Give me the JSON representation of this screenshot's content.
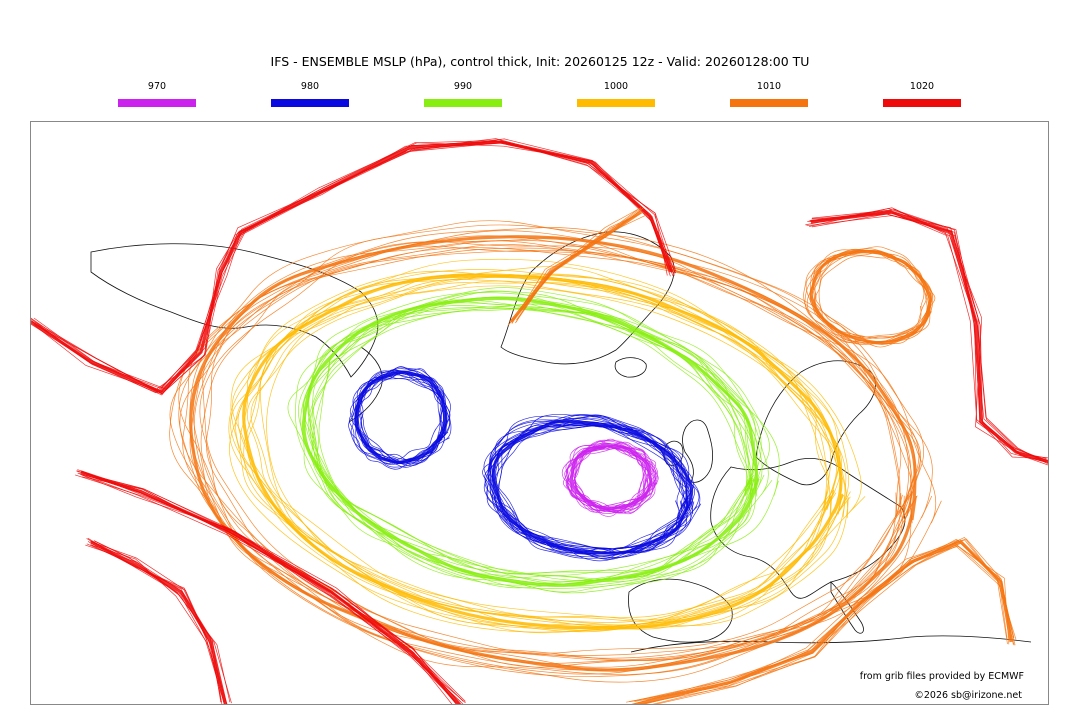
{
  "title": "IFS - ENSEMBLE MSLP (hPa), control thick, Init: 20260125 12z - Valid: 20260128:00 TU",
  "legend": [
    {
      "label": "970",
      "color": "#cc22ee"
    },
    {
      "label": "980",
      "color": "#0a0ae0"
    },
    {
      "label": "990",
      "color": "#88ee11"
    },
    {
      "label": "1000",
      "color": "#ffbb00"
    },
    {
      "label": "1010",
      "color": "#f57410"
    },
    {
      "label": "1020",
      "color": "#ee0a0a"
    }
  ],
  "credits": {
    "source": "from grib files provided by ECMWF",
    "copyright": "©2026 sb@irizone.net"
  }
}
